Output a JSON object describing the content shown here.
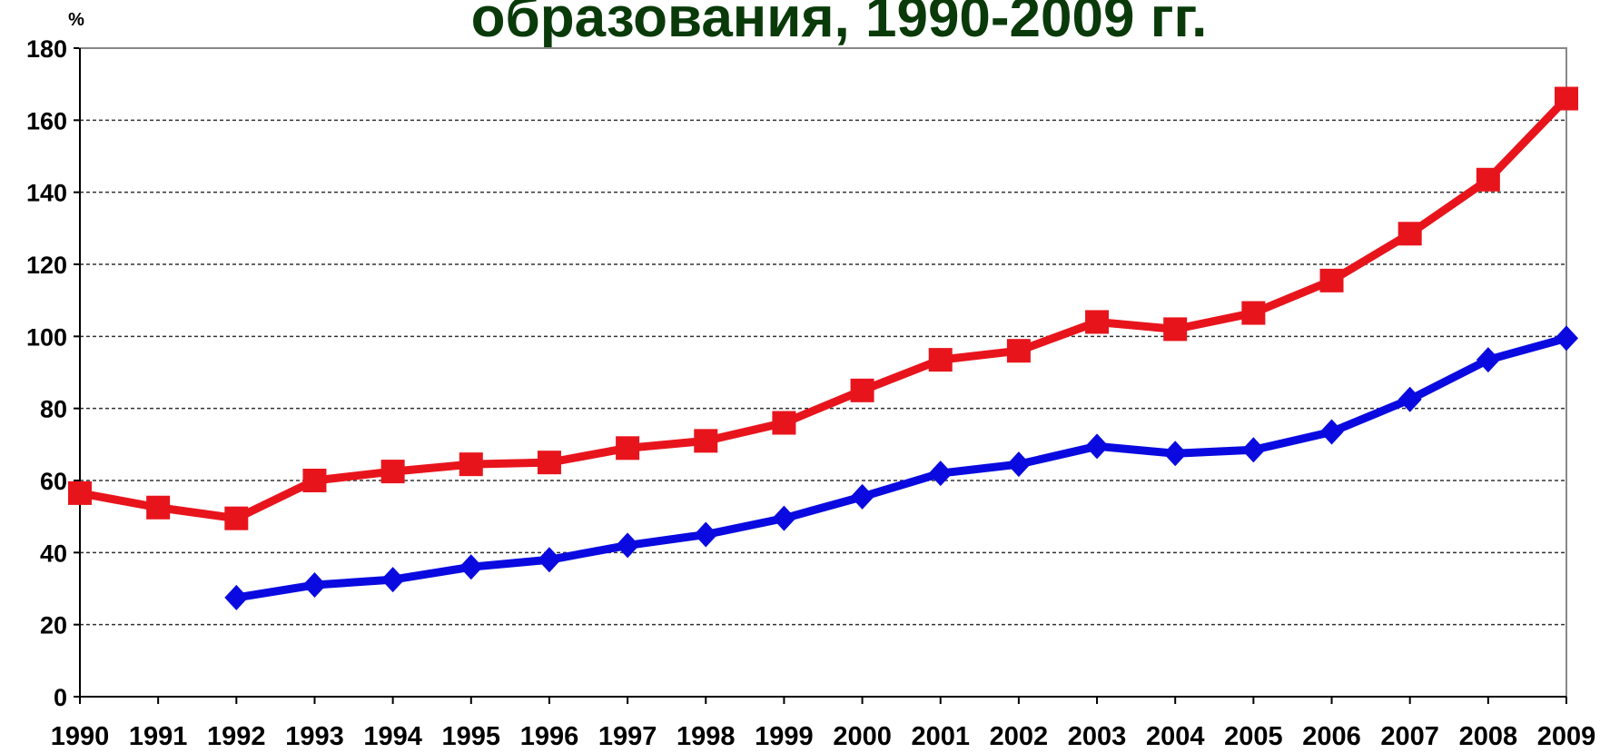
{
  "chart_data": {
    "type": "line",
    "title": "образования, 1990-2009 гг.",
    "y_unit": "%",
    "x": [
      1990,
      1991,
      1992,
      1993,
      1994,
      1995,
      1996,
      1997,
      1998,
      1999,
      2000,
      2001,
      2002,
      2003,
      2004,
      2005,
      2006,
      2007,
      2008,
      2009
    ],
    "xlim": [
      1990,
      2009
    ],
    "series": [
      {
        "color": "#e8141c",
        "marker": "square",
        "values": [
          56.5,
          52.5,
          49.5,
          60,
          62.5,
          64.5,
          65,
          69,
          71,
          76,
          85,
          93.5,
          96,
          104,
          102,
          106.5,
          115.5,
          128.5,
          143.5,
          166
        ]
      },
      {
        "color": "#0a0ae0",
        "marker": "diamond",
        "values": [
          null,
          null,
          27.5,
          31,
          32.5,
          36,
          38,
          42,
          45,
          49.5,
          55.5,
          62,
          64.5,
          69.5,
          67.5,
          68.5,
          73.5,
          82.5,
          93.5,
          99.5
        ]
      }
    ],
    "ylim": [
      0,
      180
    ],
    "yticks": [
      0,
      20,
      40,
      60,
      80,
      100,
      120,
      140,
      160,
      180
    ],
    "grid": true
  }
}
